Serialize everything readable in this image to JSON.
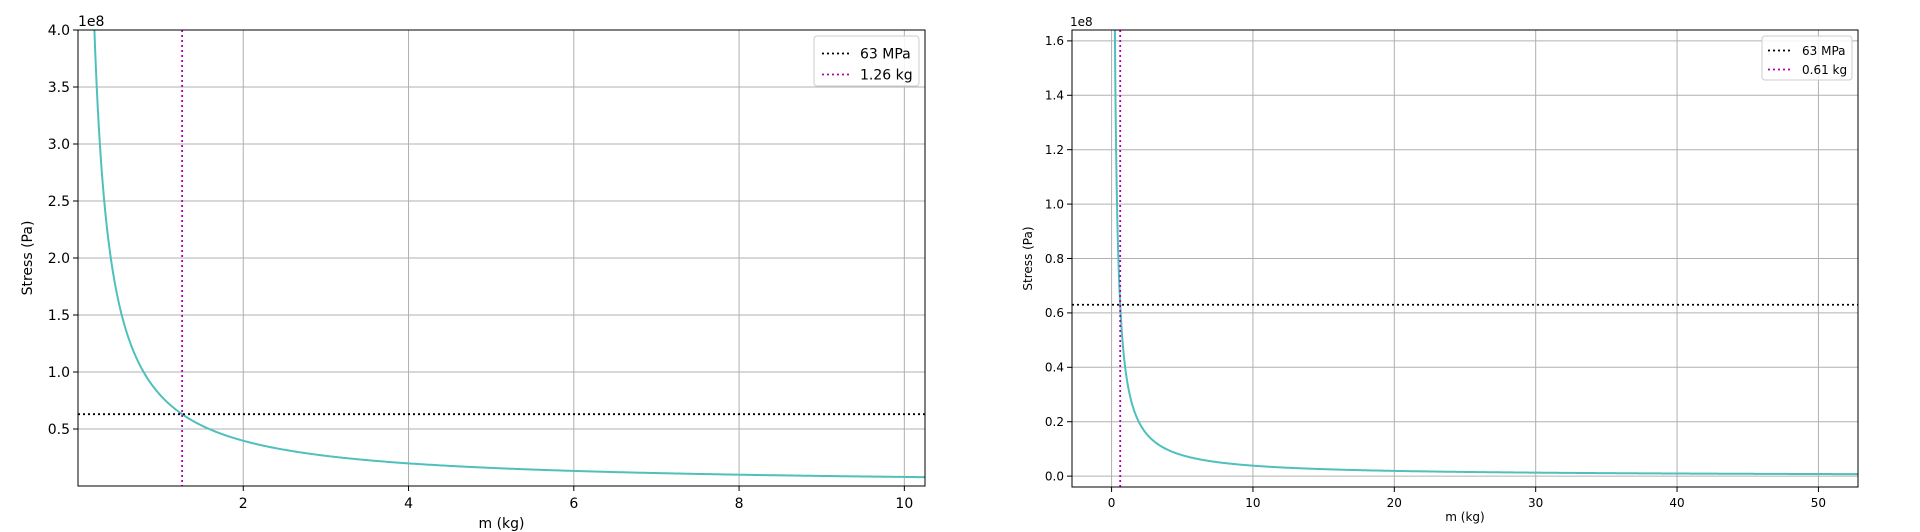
{
  "chart_data": [
    {
      "type": "line",
      "xlabel": "m (kg)",
      "ylabel": "Stress (Pa)",
      "y_scale_label": "1e8",
      "xlim": [
        0.0,
        10.25
      ],
      "ylim": [
        0.0,
        4.0
      ],
      "x_ticks": [
        2,
        4,
        6,
        8,
        10
      ],
      "x_tick_labels": [
        "2",
        "4",
        "6",
        "8",
        "10"
      ],
      "y_ticks": [
        0.5,
        1.0,
        1.5,
        2.0,
        2.5,
        3.0,
        3.5,
        4.0
      ],
      "y_tick_labels": [
        "0.5",
        "1.0",
        "1.5",
        "2.0",
        "2.5",
        "3.0",
        "3.5",
        "4.0"
      ],
      "grid": true,
      "legend_position": "top-right",
      "curve": {
        "formula": "y = k / x",
        "k": 0.7938,
        "x_range": [
          0.05,
          10.25
        ],
        "color": "#4fc0bc"
      },
      "series": [
        {
          "name": "63 MPa",
          "kind": "hline",
          "y": 0.63,
          "color": "#000000",
          "style": "dotted"
        },
        {
          "name": "1.26 kg",
          "kind": "vline",
          "x": 1.26,
          "color": "#b300b3",
          "style": "dotted"
        }
      ]
    },
    {
      "type": "line",
      "xlabel": "m (kg)",
      "ylabel": "Stress (Pa)",
      "y_scale_label": "1e8",
      "xlim": [
        -2.8,
        52.8
      ],
      "ylim": [
        -0.04,
        1.64
      ],
      "x_ticks": [
        0,
        10,
        20,
        30,
        40,
        50
      ],
      "x_tick_labels": [
        "0",
        "10",
        "20",
        "30",
        "40",
        "50"
      ],
      "y_ticks": [
        0.0,
        0.2,
        0.4,
        0.6,
        0.8,
        1.0,
        1.2,
        1.4,
        1.6
      ],
      "y_tick_labels": [
        "0.0",
        "0.2",
        "0.4",
        "0.6",
        "0.8",
        "1.0",
        "1.2",
        "1.4",
        "1.6"
      ],
      "grid": true,
      "legend_position": "top-right",
      "curve": {
        "formula": "y = k / x",
        "k": 0.3843,
        "x_range": [
          0.2,
          52.8
        ],
        "color": "#4fc0bc"
      },
      "series": [
        {
          "name": "63 MPa",
          "kind": "hline",
          "y": 0.63,
          "color": "#000000",
          "style": "dotted"
        },
        {
          "name": "0.61 kg",
          "kind": "vline",
          "x": 0.61,
          "color": "#b300b3",
          "style": "dotted"
        }
      ]
    }
  ]
}
